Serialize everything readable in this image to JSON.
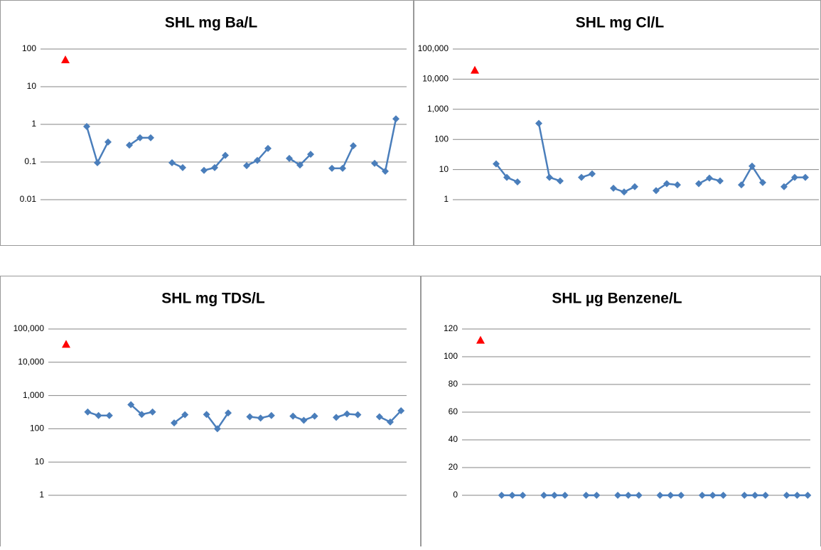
{
  "chart_data": [
    {
      "type": "line",
      "title": "SHL mg Ba/L",
      "log": true,
      "grid": true,
      "categories": [
        null,
        null,
        null,
        null,
        null,
        null,
        null,
        null,
        null,
        null,
        null,
        null,
        null,
        null,
        null,
        null,
        null,
        null,
        null,
        null,
        null,
        null,
        null,
        null,
        null,
        null,
        null,
        null,
        null,
        null,
        null,
        null
      ],
      "series": [
        {
          "color": "#ff0000",
          "marker": "triangle",
          "values": [
            52,
            null,
            null,
            null,
            null,
            null,
            null,
            null,
            null,
            null,
            null,
            null,
            null,
            null,
            null,
            null,
            null,
            null,
            null,
            null,
            null,
            null,
            null,
            null,
            null,
            null,
            null,
            null,
            null,
            null,
            null,
            null
          ]
        },
        {
          "color": "#4a7ebb",
          "marker": "diamond",
          "values": [
            null,
            null,
            0.88,
            0.096,
            0.34,
            null,
            0.28,
            0.44,
            0.44,
            null,
            0.096,
            0.071,
            null,
            0.06,
            0.071,
            0.15,
            null,
            0.08,
            0.11,
            0.23,
            null,
            0.125,
            0.083,
            0.16,
            null,
            0.068,
            0.068,
            0.27,
            null,
            0.092,
            0.057,
            1.4
          ]
        }
      ],
      "ylim": [
        0.01,
        100
      ],
      "yticks": [
        0.01,
        0.1,
        1,
        10,
        100
      ]
    },
    {
      "type": "line",
      "title": "SHL mg Cl/L",
      "log": true,
      "grid": true,
      "categories": [
        null,
        null,
        null,
        null,
        null,
        null,
        null,
        null,
        null,
        null,
        null,
        null,
        null,
        null,
        null,
        null,
        null,
        null,
        null,
        null,
        null,
        null,
        null,
        null,
        null,
        null,
        null,
        null,
        null,
        null,
        null,
        null
      ],
      "series": [
        {
          "color": "#ff0000",
          "marker": "triangle",
          "values": [
            20000,
            null,
            null,
            null,
            null,
            null,
            null,
            null,
            null,
            null,
            null,
            null,
            null,
            null,
            null,
            null,
            null,
            null,
            null,
            null,
            null,
            null,
            null,
            null,
            null,
            null,
            null,
            null,
            null,
            null,
            null,
            null
          ]
        },
        {
          "color": "#4a7ebb",
          "marker": "diamond",
          "values": [
            null,
            null,
            15.4,
            5.5,
            3.9,
            null,
            340,
            5.5,
            4.2,
            null,
            5.5,
            7.2,
            null,
            2.4,
            1.8,
            2.7,
            null,
            2.0,
            3.4,
            3.1,
            null,
            3.4,
            5.2,
            4.2,
            null,
            3.1,
            13,
            3.7,
            null,
            2.7,
            5.5,
            5.5
          ]
        }
      ],
      "ylim": [
        1,
        100000
      ],
      "yticks": [
        1,
        10,
        100,
        {
          "value": 1000,
          "label": "1,000"
        },
        {
          "value": 10000,
          "label": "10,000"
        },
        {
          "value": 100000,
          "label": "100,000"
        }
      ]
    },
    {
      "type": "line",
      "title": "SHL mg TDS/L",
      "log": true,
      "grid": true,
      "categories": [
        null,
        null,
        null,
        null,
        null,
        null,
        null,
        null,
        null,
        null,
        null,
        null,
        null,
        null,
        null,
        null,
        null,
        null,
        null,
        null,
        null,
        null,
        null,
        null,
        null,
        null,
        null,
        null,
        null,
        null,
        null,
        null
      ],
      "series": [
        {
          "color": "#ff0000",
          "marker": "triangle",
          "values": [
            35000,
            null,
            null,
            null,
            null,
            null,
            null,
            null,
            null,
            null,
            null,
            null,
            null,
            null,
            null,
            null,
            null,
            null,
            null,
            null,
            null,
            null,
            null,
            null,
            null,
            null,
            null,
            null,
            null,
            null,
            null,
            null
          ]
        },
        {
          "color": "#4a7ebb",
          "marker": "diamond",
          "values": [
            null,
            null,
            320,
            250,
            250,
            null,
            530,
            270,
            320,
            null,
            150,
            265,
            null,
            270,
            100,
            300,
            null,
            230,
            210,
            250,
            null,
            240,
            180,
            240,
            null,
            220,
            280,
            265,
            null,
            230,
            160,
            350
          ]
        }
      ],
      "ylim": [
        1,
        100000
      ],
      "yticks": [
        1,
        10,
        100,
        {
          "value": 1000,
          "label": "1,000"
        },
        {
          "value": 10000,
          "label": "10,000"
        },
        {
          "value": 100000,
          "label": "100,000"
        }
      ]
    },
    {
      "type": "line",
      "title": "SHL µg Benzene/L",
      "log": false,
      "grid": true,
      "categories": [
        null,
        null,
        null,
        null,
        null,
        null,
        null,
        null,
        null,
        null,
        null,
        null,
        null,
        null,
        null,
        null,
        null,
        null,
        null,
        null,
        null,
        null,
        null,
        null,
        null,
        null,
        null,
        null,
        null,
        null,
        null,
        null
      ],
      "series": [
        {
          "color": "#ff0000",
          "marker": "triangle",
          "values": [
            112,
            null,
            null,
            null,
            null,
            null,
            null,
            null,
            null,
            null,
            null,
            null,
            null,
            null,
            null,
            null,
            null,
            null,
            null,
            null,
            null,
            null,
            null,
            null,
            null,
            null,
            null,
            null,
            null,
            null,
            null,
            null
          ]
        },
        {
          "color": "#4a7ebb",
          "marker": "diamond",
          "values": [
            null,
            null,
            0,
            0,
            0,
            null,
            0,
            0,
            0,
            null,
            0,
            0,
            null,
            0,
            0,
            0,
            null,
            0,
            0,
            0,
            null,
            0,
            0,
            0,
            null,
            0,
            0,
            0,
            null,
            0,
            0,
            0
          ]
        }
      ],
      "ylim": [
        0,
        120
      ],
      "yticks": [
        0,
        20,
        40,
        60,
        80,
        100,
        120
      ]
    }
  ]
}
